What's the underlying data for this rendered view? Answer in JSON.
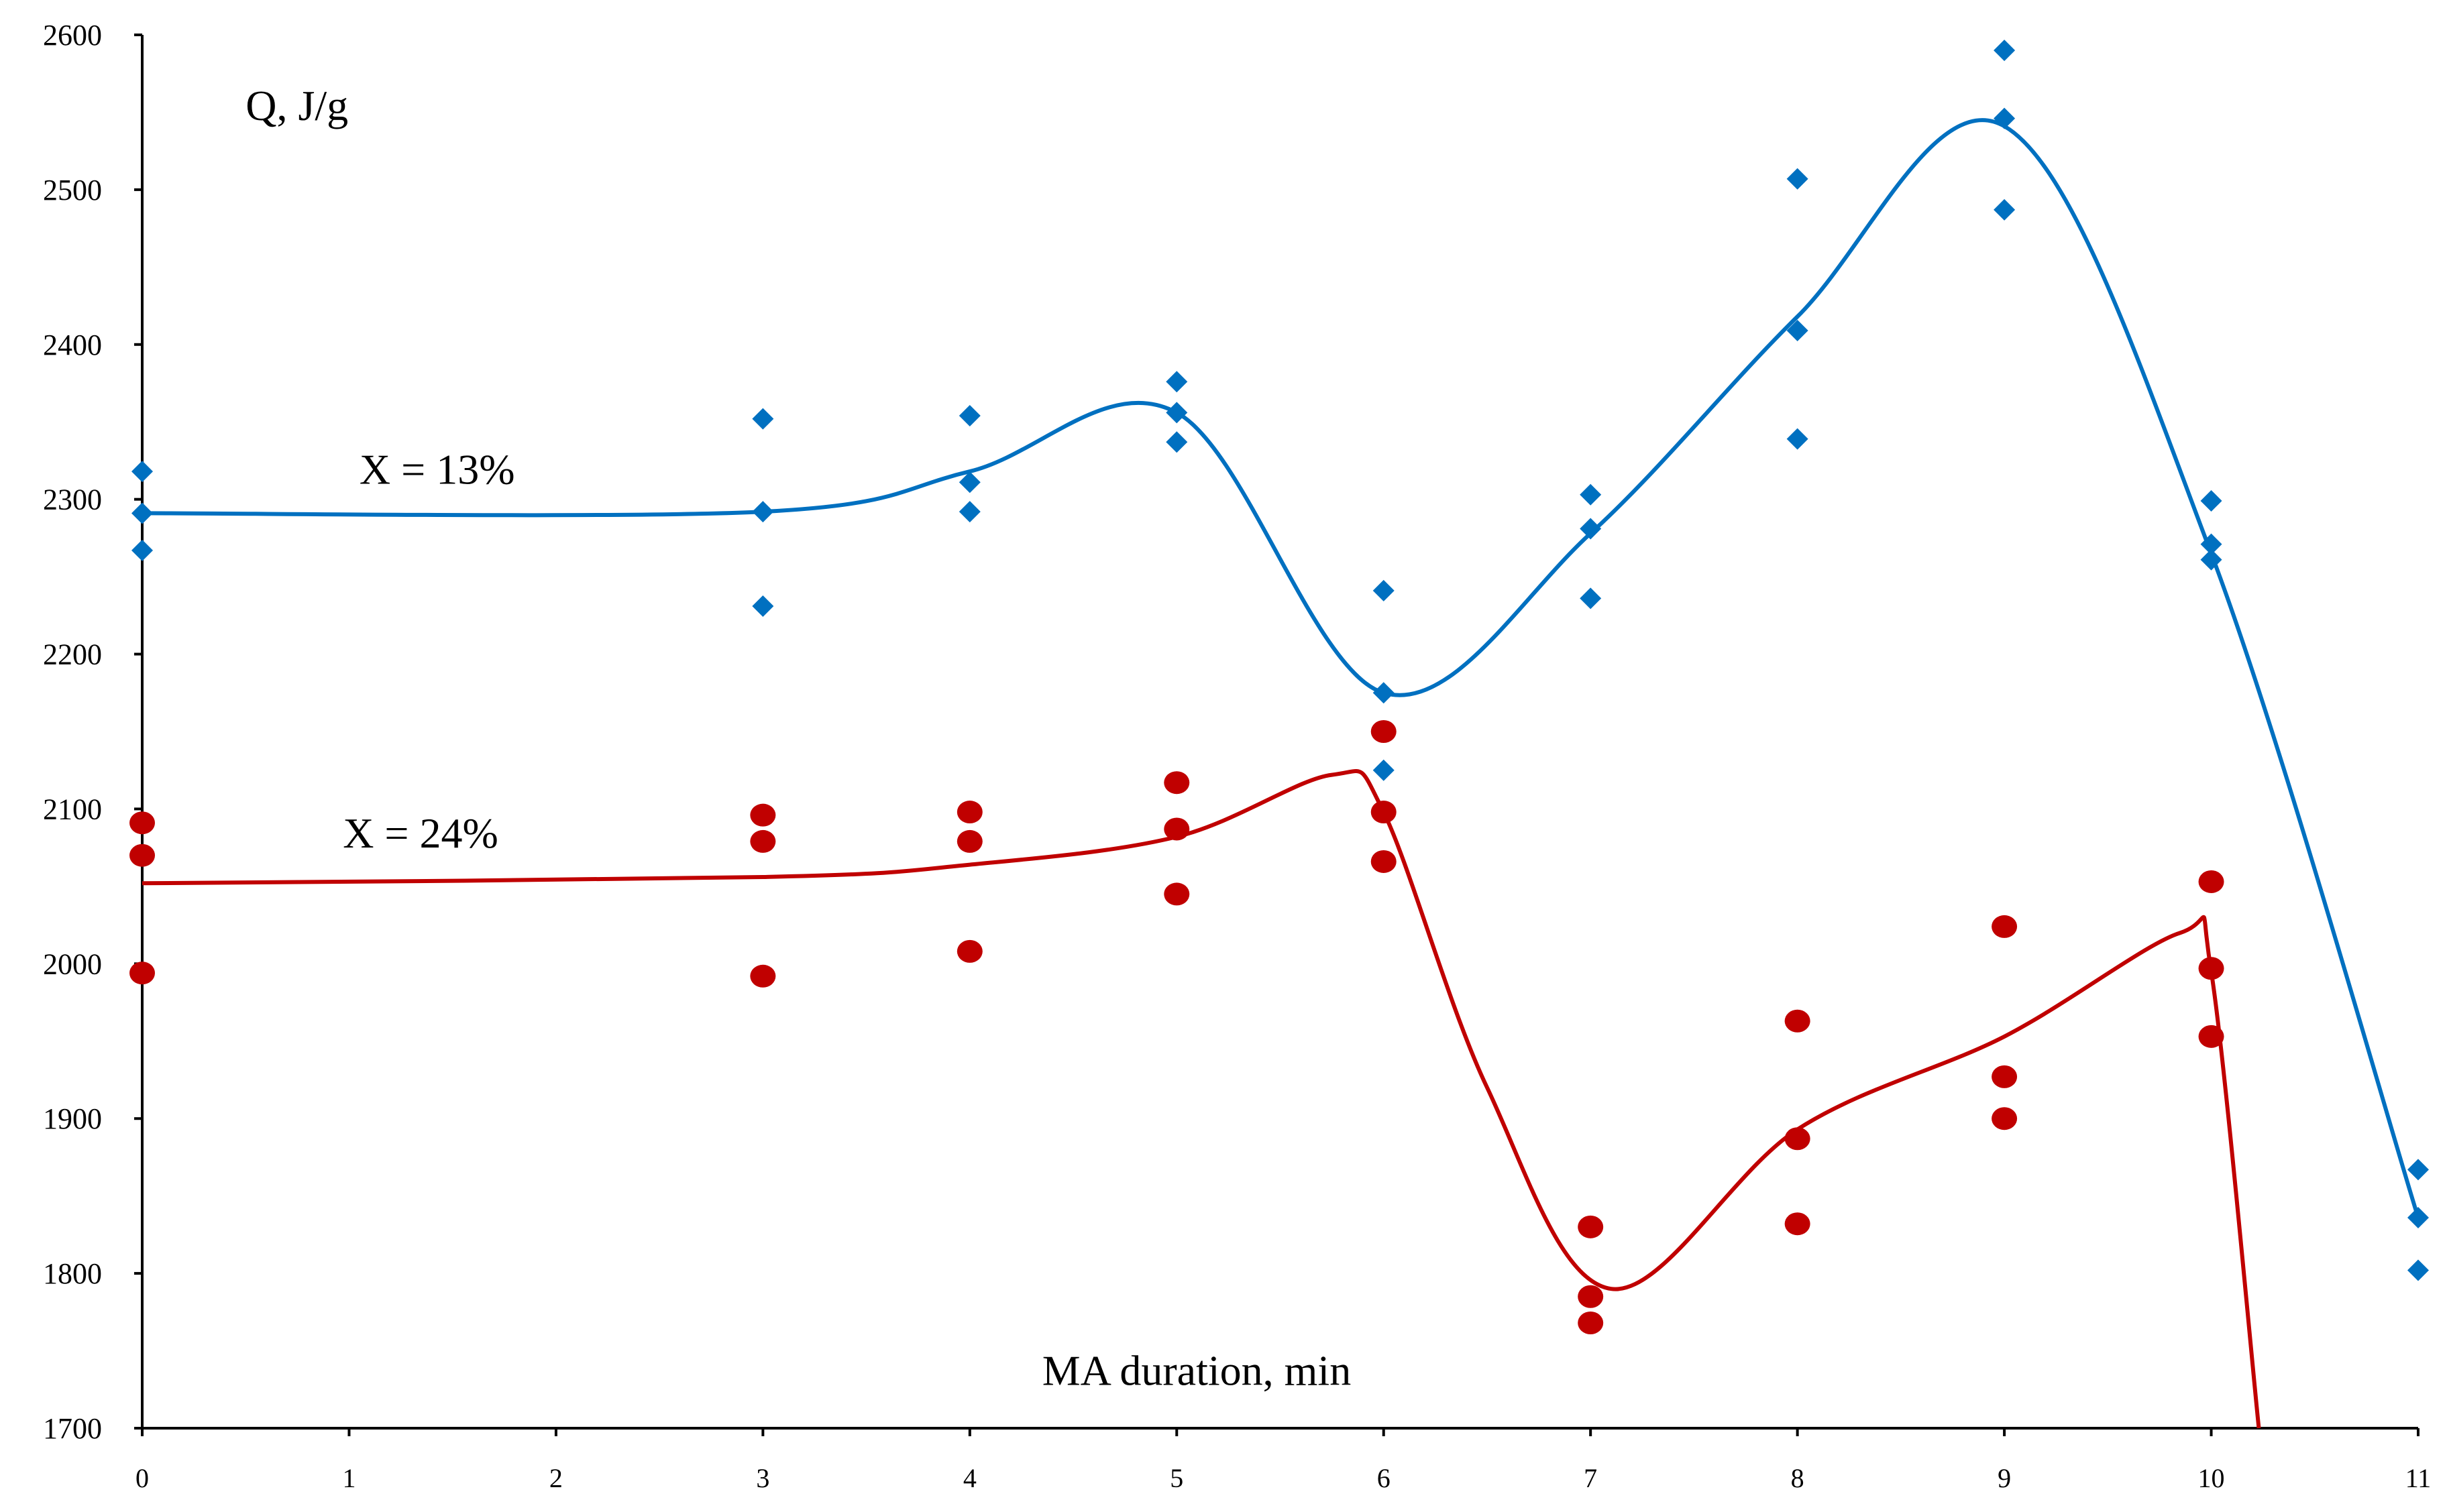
{
  "chart_data": {
    "type": "scatter",
    "title": "",
    "ylabel": "Q, J/g",
    "xlabel": "MA duration, min",
    "xlim": [
      0,
      11
    ],
    "ylim": [
      1700,
      2600
    ],
    "x_ticks": [
      "0",
      "1",
      "2",
      "3",
      "4",
      "5",
      "6",
      "7",
      "8",
      "9",
      "10",
      "11"
    ],
    "y_ticks": [
      "1700",
      "1800",
      "1900",
      "2000",
      "2100",
      "2200",
      "2300",
      "2400",
      "2500",
      "2600"
    ],
    "grid": false,
    "series": [
      {
        "name": "X = 13%",
        "color": "#0070C0",
        "marker": "diamond",
        "points": [
          [
            0,
            2318
          ],
          [
            0,
            2291
          ],
          [
            0,
            2267
          ],
          [
            3,
            2352
          ],
          [
            3,
            2292
          ],
          [
            3,
            2231
          ],
          [
            4,
            2354
          ],
          [
            4,
            2311
          ],
          [
            4,
            2292
          ],
          [
            5,
            2376
          ],
          [
            5,
            2356
          ],
          [
            5,
            2337
          ],
          [
            6,
            2241
          ],
          [
            6,
            2175
          ],
          [
            6,
            2125
          ],
          [
            7,
            2303
          ],
          [
            7,
            2281
          ],
          [
            7,
            2236
          ],
          [
            8,
            2507
          ],
          [
            8,
            2409
          ],
          [
            8,
            2339
          ],
          [
            9,
            2590
          ],
          [
            9,
            2546
          ],
          [
            9,
            2487
          ],
          [
            10,
            2299
          ],
          [
            10,
            2271
          ],
          [
            10,
            2261
          ],
          [
            11,
            1867
          ],
          [
            11,
            1836
          ],
          [
            11,
            1802
          ]
        ],
        "trend": [
          [
            0,
            2291
          ],
          [
            3,
            2292
          ],
          [
            4,
            2318
          ],
          [
            5,
            2356
          ],
          [
            6,
            2175
          ],
          [
            7,
            2278
          ],
          [
            8,
            2418
          ],
          [
            9,
            2541
          ],
          [
            10,
            2265
          ],
          [
            11,
            1836
          ]
        ]
      },
      {
        "name": "X = 24%",
        "color": "#C00000",
        "marker": "circle",
        "points": [
          [
            0,
            2091
          ],
          [
            0,
            2070
          ],
          [
            0,
            1994
          ],
          [
            3,
            2096
          ],
          [
            3,
            2079
          ],
          [
            3,
            1992
          ],
          [
            4,
            2098
          ],
          [
            4,
            2079
          ],
          [
            4,
            2008
          ],
          [
            5,
            2117
          ],
          [
            5,
            2087
          ],
          [
            5,
            2045
          ],
          [
            6,
            2150
          ],
          [
            6,
            2098
          ],
          [
            6,
            2066
          ],
          [
            7,
            1830
          ],
          [
            7,
            1785
          ],
          [
            7,
            1768
          ],
          [
            8,
            1963
          ],
          [
            8,
            1887
          ],
          [
            8,
            1832
          ],
          [
            9,
            2024
          ],
          [
            9,
            1927
          ],
          [
            9,
            1900
          ],
          [
            10,
            2053
          ],
          [
            10,
            1997
          ],
          [
            10,
            1953
          ]
        ],
        "trend": [
          [
            0,
            2052
          ],
          [
            3,
            2056
          ],
          [
            4,
            2064
          ],
          [
            5,
            2082
          ],
          [
            5.75,
            2122
          ],
          [
            6,
            2098
          ],
          [
            6.5,
            1920
          ],
          [
            7.1,
            1790
          ],
          [
            8,
            1893
          ],
          [
            9,
            1953
          ],
          [
            9.85,
            2020
          ],
          [
            10,
            1995
          ],
          [
            10.23,
            1700
          ]
        ]
      }
    ],
    "annotations": [
      {
        "text": "Q, J/g",
        "x": 0.5,
        "y": 2545
      },
      {
        "text": "X = 13%",
        "x": 1.05,
        "y": 2310
      },
      {
        "text": "X = 24%",
        "x": 0.97,
        "y": 2075
      },
      {
        "text": "MA duration, min",
        "x": 4.35,
        "y": 1728
      }
    ]
  }
}
